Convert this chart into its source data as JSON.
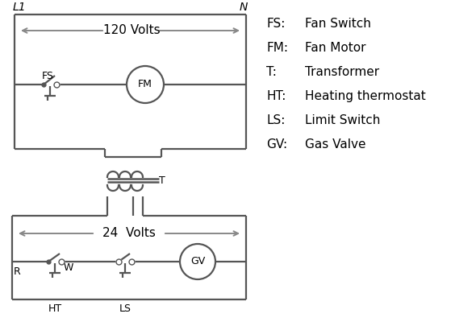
{
  "bg_color": "#ffffff",
  "line_color": "#555555",
  "arrow_color": "#888888",
  "text_color": "#000000",
  "line_width": 1.6,
  "legend_items": [
    [
      "FS:",
      "Fan Switch"
    ],
    [
      "FM:",
      "Fan Motor"
    ],
    [
      "T:",
      "Transformer"
    ],
    [
      "HT:",
      "Heating thermostat"
    ],
    [
      "LS:",
      "Limit Switch"
    ],
    [
      "GV:",
      "Gas Valve"
    ]
  ],
  "label_L1": "L1",
  "label_N": "N",
  "label_120V": "120 Volts",
  "label_24V": "24  Volts",
  "label_T": "T",
  "label_FS": "FS",
  "label_FM": "FM",
  "label_GV": "GV",
  "label_R": "R",
  "label_W": "W",
  "label_HT": "HT",
  "label_LS": "LS"
}
